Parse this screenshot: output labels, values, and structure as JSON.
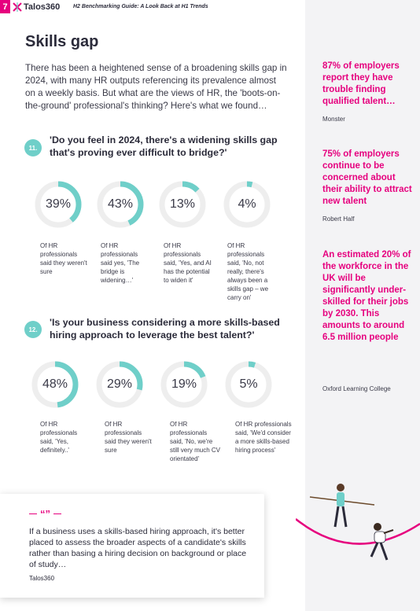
{
  "header": {
    "page_number": "7",
    "logo_text": "Talos360",
    "subtitle": "H2 Benchmarking Guide: A Look Back at H1 Trends"
  },
  "section": {
    "title": "Skills gap",
    "intro": "There has been a heightened sense of a broadening skills gap in 2024, with many HR outputs referencing its prevalence almost on a weekly basis. But what are the views of HR, the 'boots-on-the-ground' professional's thinking? Here's what we found…"
  },
  "questions": [
    {
      "number": "11.",
      "text": "'Do you feel in 2024, there's a widening skills gap that's proving ever difficult to bridge?'",
      "stats": [
        {
          "value": "39%",
          "fraction": 0.39,
          "caption": "Of HR professionals said they weren't sure"
        },
        {
          "value": "43%",
          "fraction": 0.43,
          "caption": "Of HR professionals said yes, 'The bridge is widening…'"
        },
        {
          "value": "13%",
          "fraction": 0.13,
          "caption": "Of HR professionals said, 'Yes, and AI has the potential to widen it'"
        },
        {
          "value": "4%",
          "fraction": 0.04,
          "caption": "Of HR professionals said, 'No, not really, there's always been a skills gap – we carry on'"
        }
      ]
    },
    {
      "number": "12.",
      "text": "'Is your business considering a more skills-based hiring approach to leverage the best talent?'",
      "stats": [
        {
          "value": "48%",
          "fraction": 0.48,
          "caption": "Of HR professionals said, 'Yes, definitely..'"
        },
        {
          "value": "29%",
          "fraction": 0.29,
          "caption": "Of HR professionals said they weren't sure"
        },
        {
          "value": "19%",
          "fraction": 0.19,
          "caption": "Of HR professionals said, 'No, we're still very much CV orientated'"
        },
        {
          "value": "5%",
          "fraction": 0.05,
          "caption": "Of HR professionals said, 'We'd consider a more skills-based hiring process'"
        }
      ]
    }
  ],
  "sidebar": [
    {
      "text": "87% of employers report they have trouble finding qualified talent…",
      "source": "Monster"
    },
    {
      "text": "75% of employers continue to be concerned about their ability to attract new talent",
      "source": "Robert Half"
    },
    {
      "text": "An estimated 20% of the workforce in the UK will be significantly under-skilled for their jobs by 2030. This amounts to around 6.5 million people",
      "source": "Oxford Learning College"
    }
  ],
  "quote": {
    "mark": "“”",
    "text": "If a business uses a skills-based hiring approach, it's better placed to assess the broader aspects of a candidate's skills rather than basing a hiring decision on background or place of study…",
    "brand": "Talos360"
  },
  "colors": {
    "accent_pink": "#e6007e",
    "accent_teal": "#6fcfc9",
    "ring_track": "#eeeeee",
    "panel_bg": "#f3f3f5"
  },
  "icons": {
    "logo_mark": "talos-x-mark",
    "illustration": "tightrope-walkers-illustration"
  }
}
